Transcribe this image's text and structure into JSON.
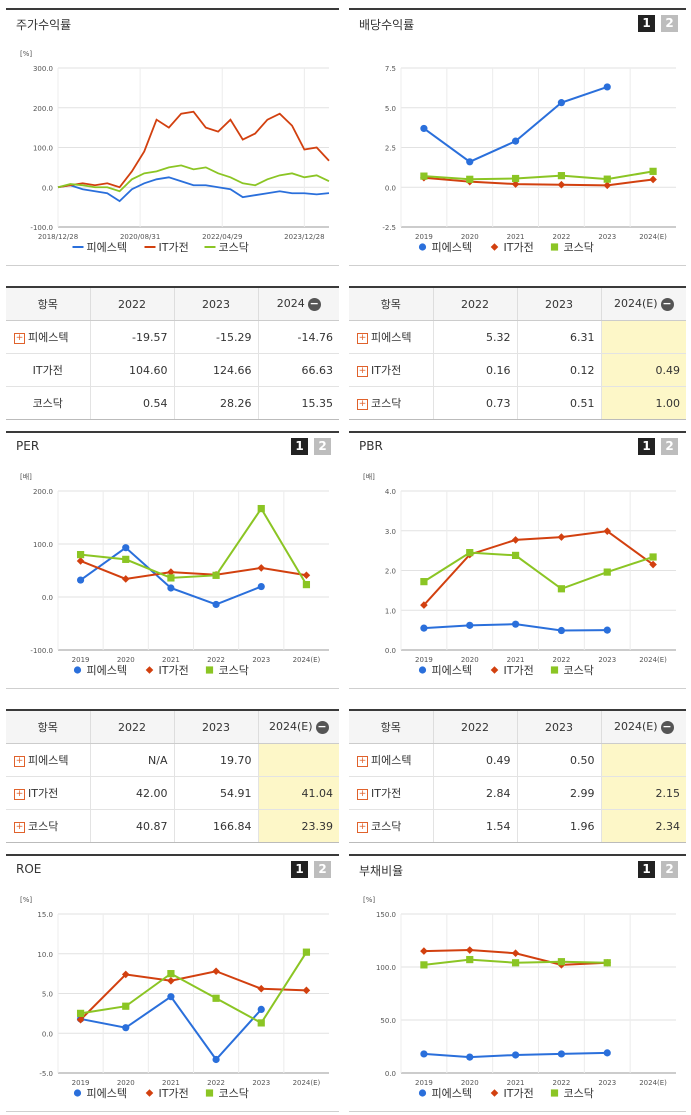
{
  "colors": {
    "s1": "#2a6fdb",
    "s2": "#d2400f",
    "s3": "#8bc524"
  },
  "legend": [
    "피에스텍",
    "IT가전",
    "코스닥"
  ],
  "pager": {
    "p1": "1",
    "p2": "2"
  },
  "charts": {
    "stock": {
      "title": "주가수익률",
      "unit": "[%]",
      "ytick_labels": [
        "300.0",
        "200.0",
        "100.0",
        "0.0",
        "-100.0"
      ],
      "xtick_labels": [
        "2018/12/28",
        "2020/08/31",
        "2022/04/29",
        "2023/12/28"
      ],
      "chart_data": {
        "type": "line",
        "x_range": [
          "2018/12/28",
          "2024/06"
        ],
        "ylim": [
          -100,
          300
        ],
        "series": [
          {
            "name": "피에스텍",
            "x": [
              "2018-12",
              "2019-03",
              "2019-06",
              "2019-09",
              "2019-12",
              "2020-03",
              "2020-06",
              "2020-09",
              "2020-12",
              "2021-03",
              "2021-06",
              "2021-09",
              "2021-12",
              "2022-03",
              "2022-06",
              "2022-09",
              "2022-12",
              "2023-03",
              "2023-06",
              "2023-09",
              "2023-12",
              "2024-03",
              "2024-06"
            ],
            "values": [
              0,
              5,
              -5,
              -10,
              -15,
              -35,
              -5,
              10,
              20,
              25,
              15,
              5,
              5,
              0,
              -5,
              -25,
              -20,
              -15,
              -10,
              -15,
              -15,
              -18,
              -14.76
            ]
          },
          {
            "name": "IT가전",
            "x": [
              "2018-12",
              "2019-03",
              "2019-06",
              "2019-09",
              "2019-12",
              "2020-03",
              "2020-06",
              "2020-09",
              "2020-12",
              "2021-03",
              "2021-06",
              "2021-09",
              "2021-12",
              "2022-03",
              "2022-06",
              "2022-09",
              "2022-12",
              "2023-03",
              "2023-06",
              "2023-09",
              "2023-12",
              "2024-03",
              "2024-06"
            ],
            "values": [
              0,
              5,
              10,
              5,
              10,
              0,
              40,
              90,
              170,
              150,
              185,
              190,
              150,
              140,
              170,
              120,
              135,
              170,
              185,
              155,
              95,
              100,
              66.63
            ]
          },
          {
            "name": "코스닥",
            "x": [
              "2018-12",
              "2019-03",
              "2019-06",
              "2019-09",
              "2019-12",
              "2020-03",
              "2020-06",
              "2020-09",
              "2020-12",
              "2021-03",
              "2021-06",
              "2021-09",
              "2021-12",
              "2022-03",
              "2022-06",
              "2022-09",
              "2022-12",
              "2023-03",
              "2023-06",
              "2023-09",
              "2023-12",
              "2024-03",
              "2024-06"
            ],
            "values": [
              0,
              8,
              5,
              0,
              0,
              -10,
              20,
              35,
              40,
              50,
              55,
              45,
              50,
              35,
              25,
              10,
              5,
              20,
              30,
              35,
              25,
              30,
              15.35
            ]
          }
        ]
      }
    },
    "dividend": {
      "title": "배당수익률",
      "unit": "",
      "ytick_labels": [
        "7.5",
        "5.0",
        "2.5",
        "0.0",
        "-2.5"
      ],
      "chart_data": {
        "type": "line",
        "categories": [
          "2019",
          "2020",
          "2021",
          "2022",
          "2023",
          "2024(E)"
        ],
        "ylim": [
          -2.5,
          7.5
        ],
        "series": [
          {
            "name": "피에스텍",
            "values": [
              3.7,
              1.6,
              2.9,
              5.32,
              6.31,
              null
            ]
          },
          {
            "name": "IT가전",
            "values": [
              0.6,
              0.35,
              0.2,
              0.16,
              0.12,
              0.49
            ]
          },
          {
            "name": "코스닥",
            "values": [
              0.7,
              0.5,
              0.55,
              0.73,
              0.51,
              1.0
            ]
          }
        ]
      }
    },
    "per": {
      "title": "PER",
      "unit": "[배]",
      "ytick_labels": [
        "200.0",
        "100.0",
        "0.0",
        "-100.0"
      ],
      "chart_data": {
        "type": "line",
        "categories": [
          "2019",
          "2020",
          "2021",
          "2022",
          "2023",
          "2024(E)"
        ],
        "ylim": [
          -100,
          200
        ],
        "series": [
          {
            "name": "피에스텍",
            "values": [
              32,
              93,
              17,
              -14,
              19.7,
              null
            ]
          },
          {
            "name": "IT가전",
            "values": [
              68,
              34,
              47,
              42.0,
              54.91,
              41.04
            ]
          },
          {
            "name": "코스닥",
            "values": [
              80,
              71,
              36,
              40.87,
              166.84,
              23.39
            ]
          }
        ]
      }
    },
    "pbr": {
      "title": "PBR",
      "unit": "[배]",
      "ytick_labels": [
        "4.0",
        "3.0",
        "2.0",
        "1.0",
        "0.0"
      ],
      "chart_data": {
        "type": "line",
        "categories": [
          "2019",
          "2020",
          "2021",
          "2022",
          "2023",
          "2024(E)"
        ],
        "ylim": [
          0,
          4
        ],
        "series": [
          {
            "name": "피에스텍",
            "values": [
              0.55,
              0.62,
              0.65,
              0.49,
              0.5,
              null
            ]
          },
          {
            "name": "IT가전",
            "values": [
              1.13,
              2.4,
              2.77,
              2.84,
              2.99,
              2.15
            ]
          },
          {
            "name": "코스닥",
            "values": [
              1.72,
              2.45,
              2.38,
              1.54,
              1.96,
              2.34
            ]
          }
        ]
      }
    },
    "roe": {
      "title": "ROE",
      "unit": "[%]",
      "ytick_labels": [
        "15.0",
        "10.0",
        "5.0",
        "0.0",
        "-5.0"
      ],
      "chart_data": {
        "type": "line",
        "categories": [
          "2019",
          "2020",
          "2021",
          "2022",
          "2023",
          "2024(E)"
        ],
        "ylim": [
          -5,
          15
        ],
        "series": [
          {
            "name": "피에스텍",
            "values": [
              1.8,
              0.7,
              4.6,
              -3.3,
              3.0,
              null
            ]
          },
          {
            "name": "IT가전",
            "values": [
              1.7,
              7.4,
              6.6,
              7.8,
              5.6,
              5.4
            ]
          },
          {
            "name": "코스닥",
            "values": [
              2.5,
              3.4,
              7.5,
              4.4,
              1.3,
              10.2
            ]
          }
        ]
      }
    },
    "debt": {
      "title": "부채비율",
      "unit": "[%]",
      "ytick_labels": [
        "150.0",
        "100.0",
        "50.0",
        "0.0"
      ],
      "chart_data": {
        "type": "line",
        "categories": [
          "2019",
          "2020",
          "2021",
          "2022",
          "2023",
          "2024(E)"
        ],
        "ylim": [
          0,
          150
        ],
        "series": [
          {
            "name": "피에스텍",
            "values": [
              18,
              15,
              17,
              18,
              19,
              null
            ]
          },
          {
            "name": "IT가전",
            "values": [
              115,
              116,
              113,
              102,
              104,
              null
            ]
          },
          {
            "name": "코스닥",
            "values": [
              102,
              107,
              104,
              105,
              104,
              null
            ]
          }
        ]
      }
    }
  },
  "tables": {
    "stock": {
      "h0": "항목",
      "h1": "2022",
      "h2": "2023",
      "h3": "2024",
      "rows": [
        {
          "name": "피에스텍",
          "c1": "-19.57",
          "c2": "-15.29",
          "c3": "-14.76"
        },
        {
          "name": "IT가전",
          "c1": "104.60",
          "c2": "124.66",
          "c3": "66.63"
        },
        {
          "name": "코스닥",
          "c1": "0.54",
          "c2": "28.26",
          "c3": "15.35"
        }
      ]
    },
    "dividend": {
      "h0": "항목",
      "h1": "2022",
      "h2": "2023",
      "h3": "2024(E)",
      "rows": [
        {
          "name": "피에스텍",
          "c1": "5.32",
          "c2": "6.31",
          "c3": ""
        },
        {
          "name": "IT가전",
          "c1": "0.16",
          "c2": "0.12",
          "c3": "0.49"
        },
        {
          "name": "코스닥",
          "c1": "0.73",
          "c2": "0.51",
          "c3": "1.00"
        }
      ]
    },
    "per": {
      "h0": "항목",
      "h1": "2022",
      "h2": "2023",
      "h3": "2024(E)",
      "rows": [
        {
          "name": "피에스텍",
          "c1": "N/A",
          "c2": "19.70",
          "c3": ""
        },
        {
          "name": "IT가전",
          "c1": "42.00",
          "c2": "54.91",
          "c3": "41.04"
        },
        {
          "name": "코스닥",
          "c1": "40.87",
          "c2": "166.84",
          "c3": "23.39"
        }
      ]
    },
    "pbr": {
      "h0": "항목",
      "h1": "2022",
      "h2": "2023",
      "h3": "2024(E)",
      "rows": [
        {
          "name": "피에스텍",
          "c1": "0.49",
          "c2": "0.50",
          "c3": ""
        },
        {
          "name": "IT가전",
          "c1": "2.84",
          "c2": "2.99",
          "c3": "2.15"
        },
        {
          "name": "코스닥",
          "c1": "1.54",
          "c2": "1.96",
          "c3": "2.34"
        }
      ]
    }
  }
}
